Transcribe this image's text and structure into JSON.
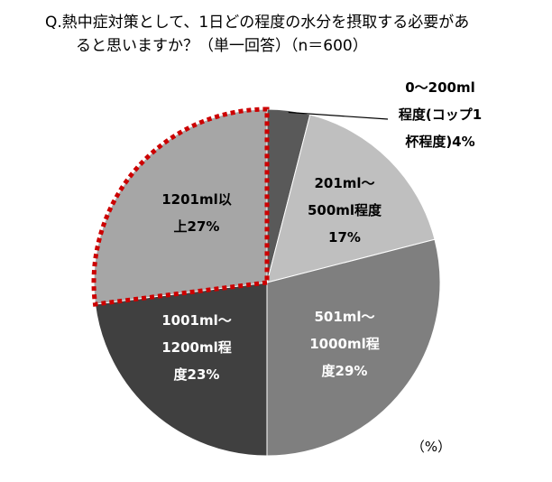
{
  "chart_data": {
    "type": "pie",
    "title_lines": [
      "Q.熱中症対策として、1日どの程度の水分を摂取する必要があ",
      "ると思いますか？（単一回答）（n＝600）"
    ],
    "unit": "（%）",
    "highlighted_slice": "1201ml以上",
    "slices": [
      {
        "label_lines": [
          "0～200ml",
          "程度(コップ1",
          "杯程度)4%"
        ],
        "category": "0～200ml程度(コップ1杯程度)",
        "value": 4,
        "color": "#595959"
      },
      {
        "label_lines": [
          "201ml～",
          "500ml程度",
          "17%"
        ],
        "category": "201ml～500ml程度",
        "value": 17,
        "color": "#bfbfbf"
      },
      {
        "label_lines": [
          "501ml～",
          "1000ml程",
          "度29%"
        ],
        "category": "501ml～1000ml程度",
        "value": 29,
        "color": "#7f7f7f"
      },
      {
        "label_lines": [
          "1001ml～",
          "1200ml程",
          "度23%"
        ],
        "category": "1001ml～1200ml程度",
        "value": 23,
        "color": "#404040"
      },
      {
        "label_lines": [
          "1201ml以",
          "上27%"
        ],
        "category": "1201ml以上",
        "value": 27,
        "color": "#a6a6a6"
      }
    ],
    "highlight_color": "#cc0000"
  }
}
